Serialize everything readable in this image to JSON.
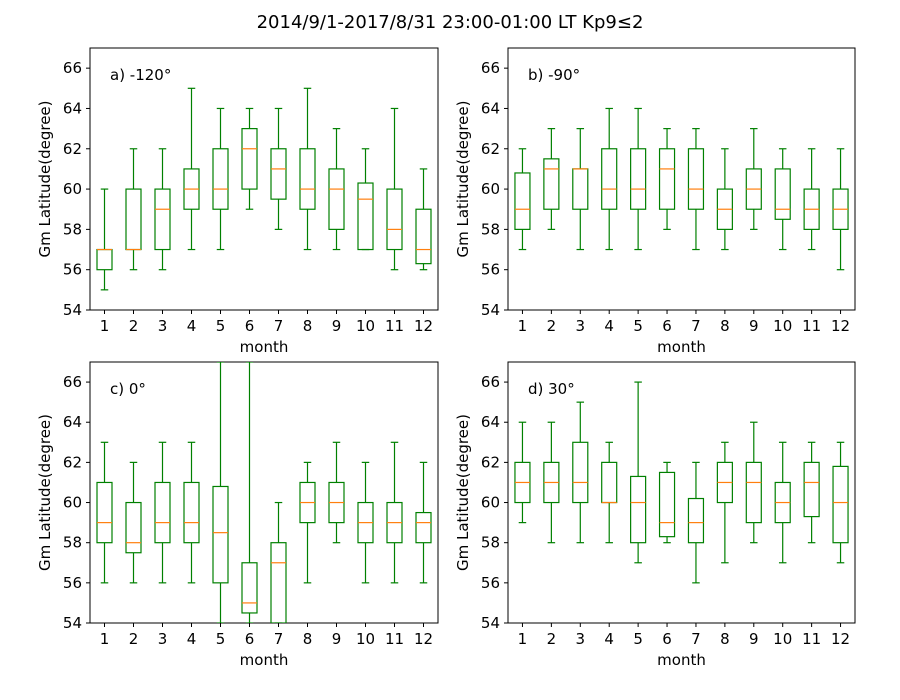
{
  "figure": {
    "title": "2014/9/1-2017/8/31  23:00-01:00 LT  Kp9≤2",
    "colors": {
      "box": "#008000",
      "median": "#ff7f0e",
      "axes": "#000000"
    }
  },
  "chart_data": [
    {
      "type": "box",
      "panel_label": "a) -120°",
      "xlabel": "month",
      "ylabel": "Gm Latitude(degree)",
      "ylim": [
        54,
        67
      ],
      "yticks": [
        54,
        56,
        58,
        60,
        62,
        64,
        66
      ],
      "categories": [
        "1",
        "2",
        "3",
        "4",
        "5",
        "6",
        "7",
        "8",
        "9",
        "10",
        "11",
        "12"
      ],
      "boxes": [
        {
          "whislo": 55,
          "q1": 56,
          "med": 57,
          "q3": 57,
          "whishi": 60
        },
        {
          "whislo": 56,
          "q1": 57,
          "med": 57,
          "q3": 60,
          "whishi": 62
        },
        {
          "whislo": 56,
          "q1": 57,
          "med": 59,
          "q3": 60,
          "whishi": 62
        },
        {
          "whislo": 57,
          "q1": 59,
          "med": 60,
          "q3": 61,
          "whishi": 65
        },
        {
          "whislo": 57,
          "q1": 59,
          "med": 60,
          "q3": 62,
          "whishi": 64
        },
        {
          "whislo": 59,
          "q1": 60,
          "med": 62,
          "q3": 63,
          "whishi": 64
        },
        {
          "whislo": 58,
          "q1": 59.5,
          "med": 61,
          "q3": 62,
          "whishi": 64
        },
        {
          "whislo": 57,
          "q1": 59,
          "med": 60,
          "q3": 62,
          "whishi": 65
        },
        {
          "whislo": 57,
          "q1": 58,
          "med": 60,
          "q3": 61,
          "whishi": 63
        },
        {
          "whislo": 57,
          "q1": 57,
          "med": 59.5,
          "q3": 60.3,
          "whishi": 62
        },
        {
          "whislo": 56,
          "q1": 57,
          "med": 58,
          "q3": 60,
          "whishi": 64
        },
        {
          "whislo": 56,
          "q1": 56.3,
          "med": 57,
          "q3": 59,
          "whishi": 61
        }
      ]
    },
    {
      "type": "box",
      "panel_label": "b) -90°",
      "xlabel": "month",
      "ylabel": "Gm Latitude(degree)",
      "ylim": [
        54,
        67
      ],
      "yticks": [
        54,
        56,
        58,
        60,
        62,
        64,
        66
      ],
      "categories": [
        "1",
        "2",
        "3",
        "4",
        "5",
        "6",
        "7",
        "8",
        "9",
        "10",
        "11",
        "12"
      ],
      "boxes": [
        {
          "whislo": 57,
          "q1": 58,
          "med": 59,
          "q3": 60.8,
          "whishi": 62
        },
        {
          "whislo": 58,
          "q1": 59,
          "med": 61,
          "q3": 61.5,
          "whishi": 63
        },
        {
          "whislo": 57,
          "q1": 59,
          "med": 61,
          "q3": 61,
          "whishi": 63
        },
        {
          "whislo": 57,
          "q1": 59,
          "med": 60,
          "q3": 62,
          "whishi": 64
        },
        {
          "whislo": 57,
          "q1": 59,
          "med": 60,
          "q3": 62,
          "whishi": 64
        },
        {
          "whislo": 58,
          "q1": 59,
          "med": 61,
          "q3": 62,
          "whishi": 63
        },
        {
          "whislo": 57,
          "q1": 59,
          "med": 60,
          "q3": 62,
          "whishi": 63
        },
        {
          "whislo": 57,
          "q1": 58,
          "med": 59,
          "q3": 60,
          "whishi": 62
        },
        {
          "whislo": 58,
          "q1": 59,
          "med": 60,
          "q3": 61,
          "whishi": 63
        },
        {
          "whislo": 57,
          "q1": 58.5,
          "med": 59,
          "q3": 61,
          "whishi": 62
        },
        {
          "whislo": 57,
          "q1": 58,
          "med": 59,
          "q3": 60,
          "whishi": 62
        },
        {
          "whislo": 56,
          "q1": 58,
          "med": 59,
          "q3": 60,
          "whishi": 62
        }
      ]
    },
    {
      "type": "box",
      "panel_label": "c) 0°",
      "xlabel": "month",
      "ylabel": "Gm Latitude(degree)",
      "ylim": [
        54,
        67
      ],
      "yticks": [
        54,
        56,
        58,
        60,
        62,
        64,
        66
      ],
      "categories": [
        "1",
        "2",
        "3",
        "4",
        "5",
        "6",
        "7",
        "8",
        "9",
        "10",
        "11",
        "12"
      ],
      "boxes": [
        {
          "whislo": 56,
          "q1": 58,
          "med": 59,
          "q3": 61,
          "whishi": 63
        },
        {
          "whislo": 56,
          "q1": 57.5,
          "med": 58,
          "q3": 60,
          "whishi": 62
        },
        {
          "whislo": 56,
          "q1": 58,
          "med": 59,
          "q3": 61,
          "whishi": 63
        },
        {
          "whislo": 56,
          "q1": 58,
          "med": 59,
          "q3": 61,
          "whishi": 63
        },
        {
          "whislo": 54,
          "q1": 56,
          "med": 58.5,
          "q3": 60.8,
          "whishi": 67
        },
        {
          "whislo": 54,
          "q1": 54.5,
          "med": 55,
          "q3": 57,
          "whishi": 67
        },
        {
          "whislo": 54,
          "q1": 54,
          "med": 57,
          "q3": 58,
          "whishi": 60
        },
        {
          "whislo": 56,
          "q1": 59,
          "med": 60,
          "q3": 61,
          "whishi": 62
        },
        {
          "whislo": 58,
          "q1": 59,
          "med": 60,
          "q3": 61,
          "whishi": 63
        },
        {
          "whislo": 56,
          "q1": 58,
          "med": 59,
          "q3": 60,
          "whishi": 62
        },
        {
          "whislo": 56,
          "q1": 58,
          "med": 59,
          "q3": 60,
          "whishi": 63
        },
        {
          "whislo": 56,
          "q1": 58,
          "med": 59,
          "q3": 59.5,
          "whishi": 62
        }
      ]
    },
    {
      "type": "box",
      "panel_label": "d) 30°",
      "xlabel": "month",
      "ylabel": "Gm Latitude(degree)",
      "ylim": [
        54,
        67
      ],
      "yticks": [
        54,
        56,
        58,
        60,
        62,
        64,
        66
      ],
      "categories": [
        "1",
        "2",
        "3",
        "4",
        "5",
        "6",
        "7",
        "8",
        "9",
        "10",
        "11",
        "12"
      ],
      "boxes": [
        {
          "whislo": 59,
          "q1": 60,
          "med": 61,
          "q3": 62,
          "whishi": 64
        },
        {
          "whislo": 58,
          "q1": 60,
          "med": 61,
          "q3": 62,
          "whishi": 64
        },
        {
          "whislo": 58,
          "q1": 60,
          "med": 61,
          "q3": 63,
          "whishi": 65
        },
        {
          "whislo": 58,
          "q1": 60,
          "med": 60,
          "q3": 62,
          "whishi": 63
        },
        {
          "whislo": 57,
          "q1": 58,
          "med": 60,
          "q3": 61.3,
          "whishi": 66
        },
        {
          "whislo": 58,
          "q1": 58.3,
          "med": 59,
          "q3": 61.5,
          "whishi": 62
        },
        {
          "whislo": 56,
          "q1": 58,
          "med": 59,
          "q3": 60.2,
          "whishi": 62
        },
        {
          "whislo": 57,
          "q1": 60,
          "med": 61,
          "q3": 62,
          "whishi": 63
        },
        {
          "whislo": 58,
          "q1": 59,
          "med": 61,
          "q3": 62,
          "whishi": 64
        },
        {
          "whislo": 57,
          "q1": 59,
          "med": 60,
          "q3": 61,
          "whishi": 63
        },
        {
          "whislo": 58,
          "q1": 59.3,
          "med": 61,
          "q3": 62,
          "whishi": 63
        },
        {
          "whislo": 57,
          "q1": 58,
          "med": 60,
          "q3": 61.8,
          "whishi": 63
        }
      ]
    }
  ]
}
